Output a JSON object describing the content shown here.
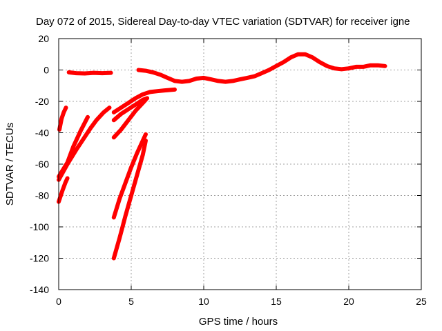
{
  "chart_data": {
    "type": "line",
    "title": "Day 072 of 2015, Sidereal Day-to-day VTEC variation (SDTVAR) for receiver igne",
    "xlabel": "GPS time / hours",
    "ylabel": "SDTVAR / TECUs",
    "xlim": [
      0,
      25
    ],
    "ylim": [
      -140,
      20
    ],
    "xticks": [
      0,
      5,
      10,
      15,
      20,
      25
    ],
    "yticks": [
      -140,
      -120,
      -100,
      -80,
      -60,
      -40,
      -20,
      0,
      20
    ],
    "grid": true,
    "color": "#ff0000",
    "series": [
      {
        "points": [
          [
            0.7,
            -1.5
          ],
          [
            1.2,
            -2
          ],
          [
            1.8,
            -2.2
          ],
          [
            2.4,
            -1.8
          ],
          [
            3.0,
            -2
          ],
          [
            3.6,
            -1.8
          ]
        ]
      },
      {
        "points": [
          [
            5.5,
            0
          ],
          [
            6.0,
            -0.5
          ],
          [
            6.5,
            -1.5
          ],
          [
            7.0,
            -3
          ],
          [
            7.5,
            -5
          ],
          [
            8.0,
            -7
          ],
          [
            8.5,
            -7.5
          ],
          [
            9.0,
            -7
          ],
          [
            9.5,
            -5.5
          ],
          [
            10.0,
            -5
          ],
          [
            10.5,
            -6
          ],
          [
            11.0,
            -7
          ],
          [
            11.5,
            -7.5
          ],
          [
            12.0,
            -7
          ],
          [
            12.5,
            -6
          ],
          [
            13.0,
            -5
          ],
          [
            13.5,
            -4
          ],
          [
            14.0,
            -2
          ],
          [
            14.5,
            0
          ],
          [
            15.0,
            2.5
          ],
          [
            15.5,
            5
          ],
          [
            16.0,
            8
          ],
          [
            16.5,
            10
          ],
          [
            17.0,
            10
          ],
          [
            17.5,
            8
          ],
          [
            18.0,
            5
          ],
          [
            18.5,
            2.5
          ],
          [
            19.0,
            1
          ],
          [
            19.5,
            0.5
          ],
          [
            20.0,
            1
          ],
          [
            20.5,
            2
          ],
          [
            21.0,
            2
          ],
          [
            21.5,
            3
          ],
          [
            22.0,
            3
          ],
          [
            22.5,
            2.5
          ]
        ]
      },
      {
        "points": [
          [
            0.05,
            -38
          ],
          [
            0.2,
            -31
          ],
          [
            0.35,
            -27
          ],
          [
            0.5,
            -24
          ]
        ]
      },
      {
        "points": [
          [
            0,
            -70
          ],
          [
            0.6,
            -60
          ],
          [
            1.2,
            -51
          ],
          [
            1.7,
            -44
          ],
          [
            2.2,
            -37
          ],
          [
            2.6,
            -32
          ],
          [
            3.1,
            -27
          ],
          [
            3.5,
            -24
          ]
        ]
      },
      {
        "points": [
          [
            0,
            -68
          ],
          [
            0.6,
            -59
          ],
          [
            1.0,
            -49
          ],
          [
            1.5,
            -39
          ],
          [
            2.0,
            -30
          ]
        ]
      },
      {
        "points": [
          [
            0,
            -84
          ],
          [
            0.25,
            -77
          ],
          [
            0.45,
            -72
          ],
          [
            0.6,
            -69
          ]
        ]
      },
      {
        "points": [
          [
            3.8,
            -27
          ],
          [
            4.3,
            -24
          ],
          [
            4.8,
            -21
          ],
          [
            5.3,
            -18
          ],
          [
            5.8,
            -15.5
          ],
          [
            6.3,
            -14
          ],
          [
            6.8,
            -13.5
          ],
          [
            7.3,
            -13
          ],
          [
            8.0,
            -12.5
          ]
        ]
      },
      {
        "points": [
          [
            3.8,
            -32
          ],
          [
            4.3,
            -28
          ],
          [
            4.8,
            -25
          ],
          [
            5.3,
            -22
          ],
          [
            5.8,
            -19
          ],
          [
            6.1,
            -18
          ]
        ]
      },
      {
        "points": [
          [
            3.8,
            -43
          ],
          [
            4.3,
            -38
          ],
          [
            4.8,
            -32
          ],
          [
            5.3,
            -26
          ],
          [
            5.8,
            -21
          ],
          [
            6.0,
            -19
          ]
        ]
      },
      {
        "points": [
          [
            3.8,
            -94
          ],
          [
            4.2,
            -82
          ],
          [
            4.6,
            -72
          ],
          [
            5.0,
            -62
          ],
          [
            5.4,
            -53
          ],
          [
            5.8,
            -45
          ],
          [
            6.0,
            -41
          ]
        ]
      },
      {
        "points": [
          [
            3.8,
            -120
          ],
          [
            4.2,
            -107
          ],
          [
            4.6,
            -93
          ],
          [
            5.0,
            -80
          ],
          [
            5.4,
            -67
          ],
          [
            5.8,
            -54
          ],
          [
            6.0,
            -45
          ]
        ]
      }
    ]
  }
}
